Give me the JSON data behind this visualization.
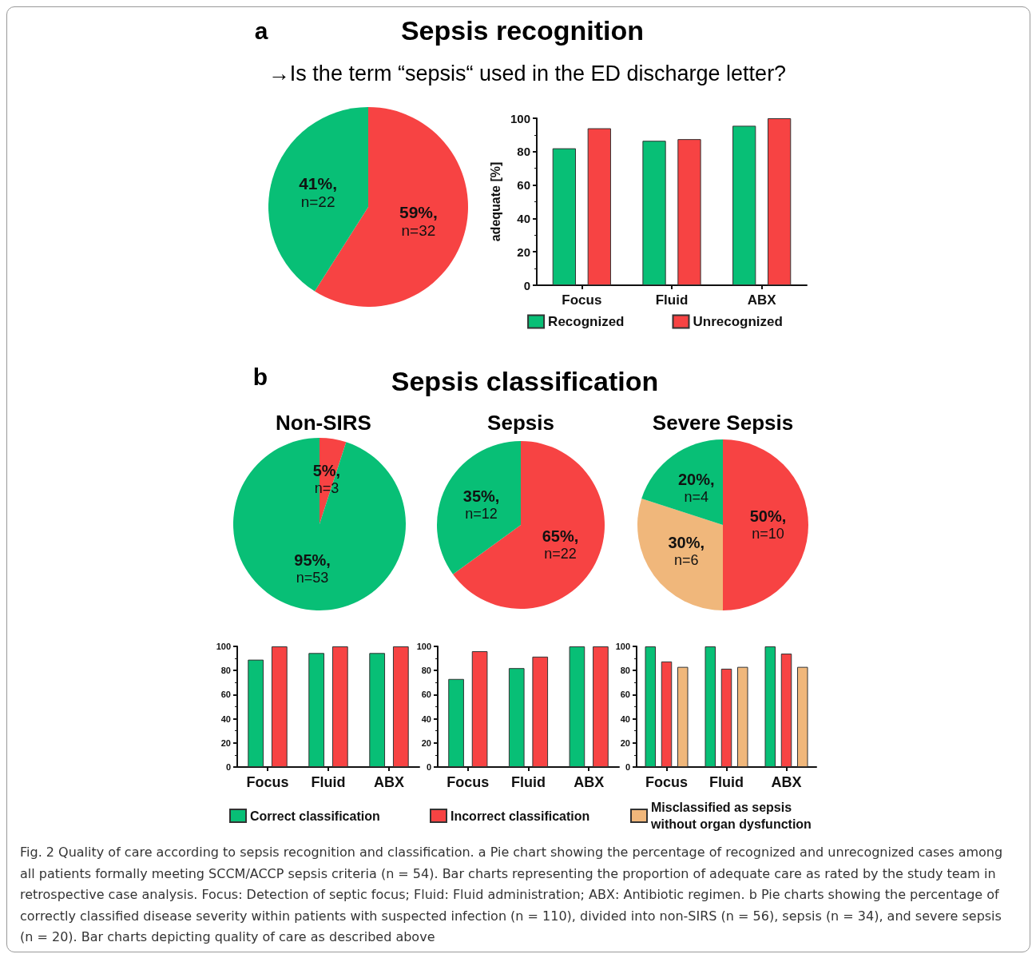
{
  "chart_data": [
    {
      "type": "pie",
      "title": "Sepsis recognition",
      "subtitle": "→Is the term “sepsis“ used in the ED discharge letter?",
      "annotations": [
        "a"
      ],
      "categories": [
        null,
        null
      ],
      "values": [
        59,
        41
      ],
      "colors": [
        "#f74343",
        "#08bf76"
      ],
      "value_labels": [
        "59%, n=32",
        "41%, n=22"
      ]
    },
    {
      "type": "bar",
      "ylabel": "adequate [%]",
      "categories": [
        "Focus",
        "Fluid",
        "ABX"
      ],
      "series": [
        {
          "name": "Recognized",
          "color": "#08bf76",
          "values": [
            82,
            86.5,
            95.5
          ]
        },
        {
          "name": "Unrecognized",
          "color": "#f74343",
          "values": [
            94,
            87.5,
            100
          ]
        }
      ],
      "ylim": [
        0,
        100
      ],
      "yticks": [
        0,
        20,
        40,
        60,
        80,
        100
      ],
      "legend": "bottom"
    },
    {
      "type": "pie",
      "title": "Non-SIRS",
      "annotations": [
        "b",
        "Sepsis classification"
      ],
      "categories": [
        null,
        null
      ],
      "values": [
        5,
        95
      ],
      "colors": [
        "#f74343",
        "#08bf76"
      ],
      "value_labels": [
        "5%, n=3",
        "95%, n=53"
      ]
    },
    {
      "type": "pie",
      "title": "Sepsis",
      "categories": [
        null,
        null
      ],
      "values": [
        65,
        35
      ],
      "colors": [
        "#f74343",
        "#08bf76"
      ],
      "value_labels": [
        "65%, n=22",
        "35%, n=12"
      ]
    },
    {
      "type": "pie",
      "title": "Severe Sepsis",
      "categories": [
        null,
        null,
        null
      ],
      "values": [
        50,
        30,
        20
      ],
      "colors": [
        "#f74343",
        "#f0b77b",
        "#08bf76"
      ],
      "value_labels": [
        "50%, n=10",
        "30%, n=6",
        "20%, n=4"
      ]
    },
    {
      "type": "bar",
      "categories": [
        "Focus",
        "Fluid",
        "ABX"
      ],
      "series": [
        {
          "color": "#08bf76",
          "values": [
            89,
            94.5,
            94.5
          ]
        },
        {
          "color": "#f74343",
          "values": [
            100,
            100,
            100
          ]
        }
      ],
      "ylim": [
        0,
        100
      ],
      "yticks": [
        0,
        20,
        40,
        60,
        80,
        100
      ]
    },
    {
      "type": "bar",
      "categories": [
        "Focus",
        "Fluid",
        "ABX"
      ],
      "series": [
        {
          "color": "#08bf76",
          "values": [
            73,
            82,
            100
          ]
        },
        {
          "color": "#f74343",
          "values": [
            96,
            91.5,
            100
          ]
        }
      ],
      "ylim": [
        0,
        100
      ],
      "yticks": [
        0,
        20,
        40,
        60,
        80,
        100
      ]
    },
    {
      "type": "bar",
      "categories": [
        "Focus",
        "Fluid",
        "ABX"
      ],
      "series": [
        {
          "name": "Correct classification",
          "color": "#08bf76",
          "values": [
            100,
            100,
            100
          ]
        },
        {
          "name": "Incorrect classification",
          "color": "#f74343",
          "values": [
            87.5,
            81.5,
            94
          ]
        },
        {
          "name": "Misclassified as sepsis without organ dysfunction",
          "color": "#f0b77b",
          "values": [
            83,
            83,
            83
          ]
        }
      ],
      "ylim": [
        0,
        100
      ],
      "yticks": [
        0,
        20,
        40,
        60,
        80,
        100
      ],
      "legend": "bottom",
      "annotations": [
        "Fig. 2 Quality of care according to sepsis recognition and classification. a Pie chart showing the percentage of recognized and unrecognized cases among all patients formally meeting SCCM/ACCP sepsis criteria (n = 54). Bar charts representing the proportion of adequate care as rated by the study team in retrospective case analysis. Focus: Detection of septic focus; Fluid: Fluid administration; ABX: Antibiotic regimen. b Pie charts showing the percentage of correctly classified disease severity within patients with suspected infection (n = 110), divided into non-SIRS (n = 56), sepsis (n = 34), and severe sepsis (n = 20). Bar charts depicting quality of care as described above"
      ]
    }
  ]
}
